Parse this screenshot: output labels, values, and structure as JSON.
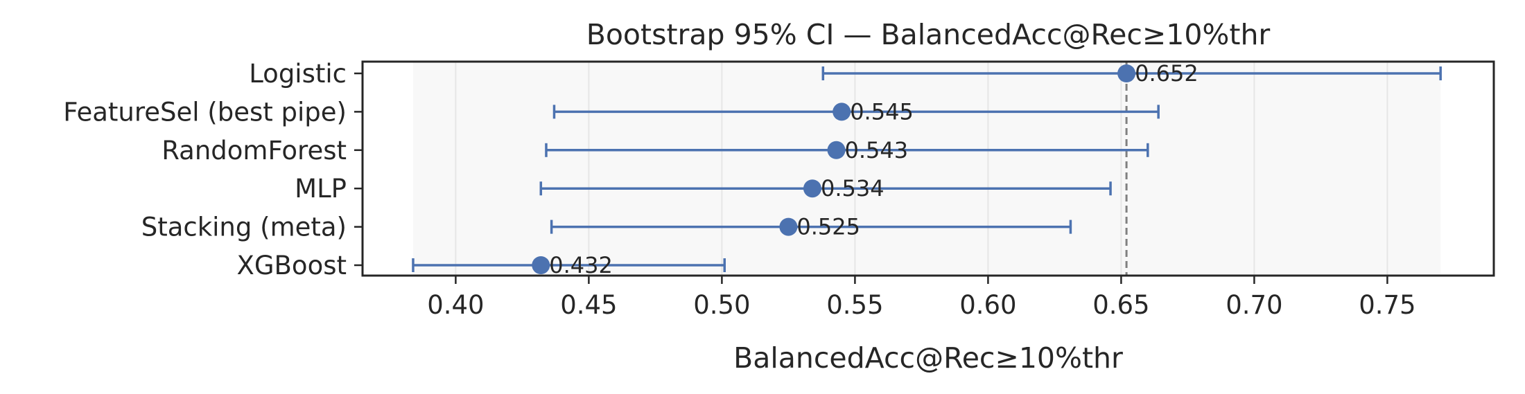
{
  "chart_data": {
    "type": "scatter",
    "title": "Bootstrap 95% CI — BalancedAcc@Rec≥10%thr",
    "xlabel": "BalancedAcc@Rec≥10%thr",
    "ylabel": "",
    "xlim": [
      0.365,
      0.79
    ],
    "x_ticks": [
      "0.40",
      "0.45",
      "0.50",
      "0.55",
      "0.60",
      "0.65",
      "0.70",
      "0.75"
    ],
    "grid": "vertical",
    "categories": [
      "Logistic",
      "FeatureSel (best pipe)",
      "RandomForest",
      "MLP",
      "Stacking (meta)",
      "XGBoost"
    ],
    "points": [
      {
        "label": "Logistic",
        "value": 0.652,
        "value_text": "0.652",
        "ci_low": 0.538,
        "ci_high": 0.77
      },
      {
        "label": "FeatureSel (best pipe)",
        "value": 0.545,
        "value_text": "0.545",
        "ci_low": 0.437,
        "ci_high": 0.664
      },
      {
        "label": "RandomForest",
        "value": 0.543,
        "value_text": "0.543",
        "ci_low": 0.434,
        "ci_high": 0.66
      },
      {
        "label": "MLP",
        "value": 0.534,
        "value_text": "0.534",
        "ci_low": 0.432,
        "ci_high": 0.646
      },
      {
        "label": "Stacking (meta)",
        "value": 0.525,
        "value_text": "0.525",
        "ci_low": 0.436,
        "ci_high": 0.631
      },
      {
        "label": "XGBoost",
        "value": 0.432,
        "value_text": "0.432",
        "ci_low": 0.384,
        "ci_high": 0.501
      }
    ],
    "reference_line": {
      "value": 0.652,
      "style": "dashed"
    },
    "shaded_range": [
      0.384,
      0.77
    ],
    "colors": {
      "point": "#4c72b0",
      "errorbar": "#4c72b0",
      "reference": "#808080",
      "shade": "#f8f8f8",
      "grid": "#e6e6e6",
      "axes": "#262626"
    }
  }
}
